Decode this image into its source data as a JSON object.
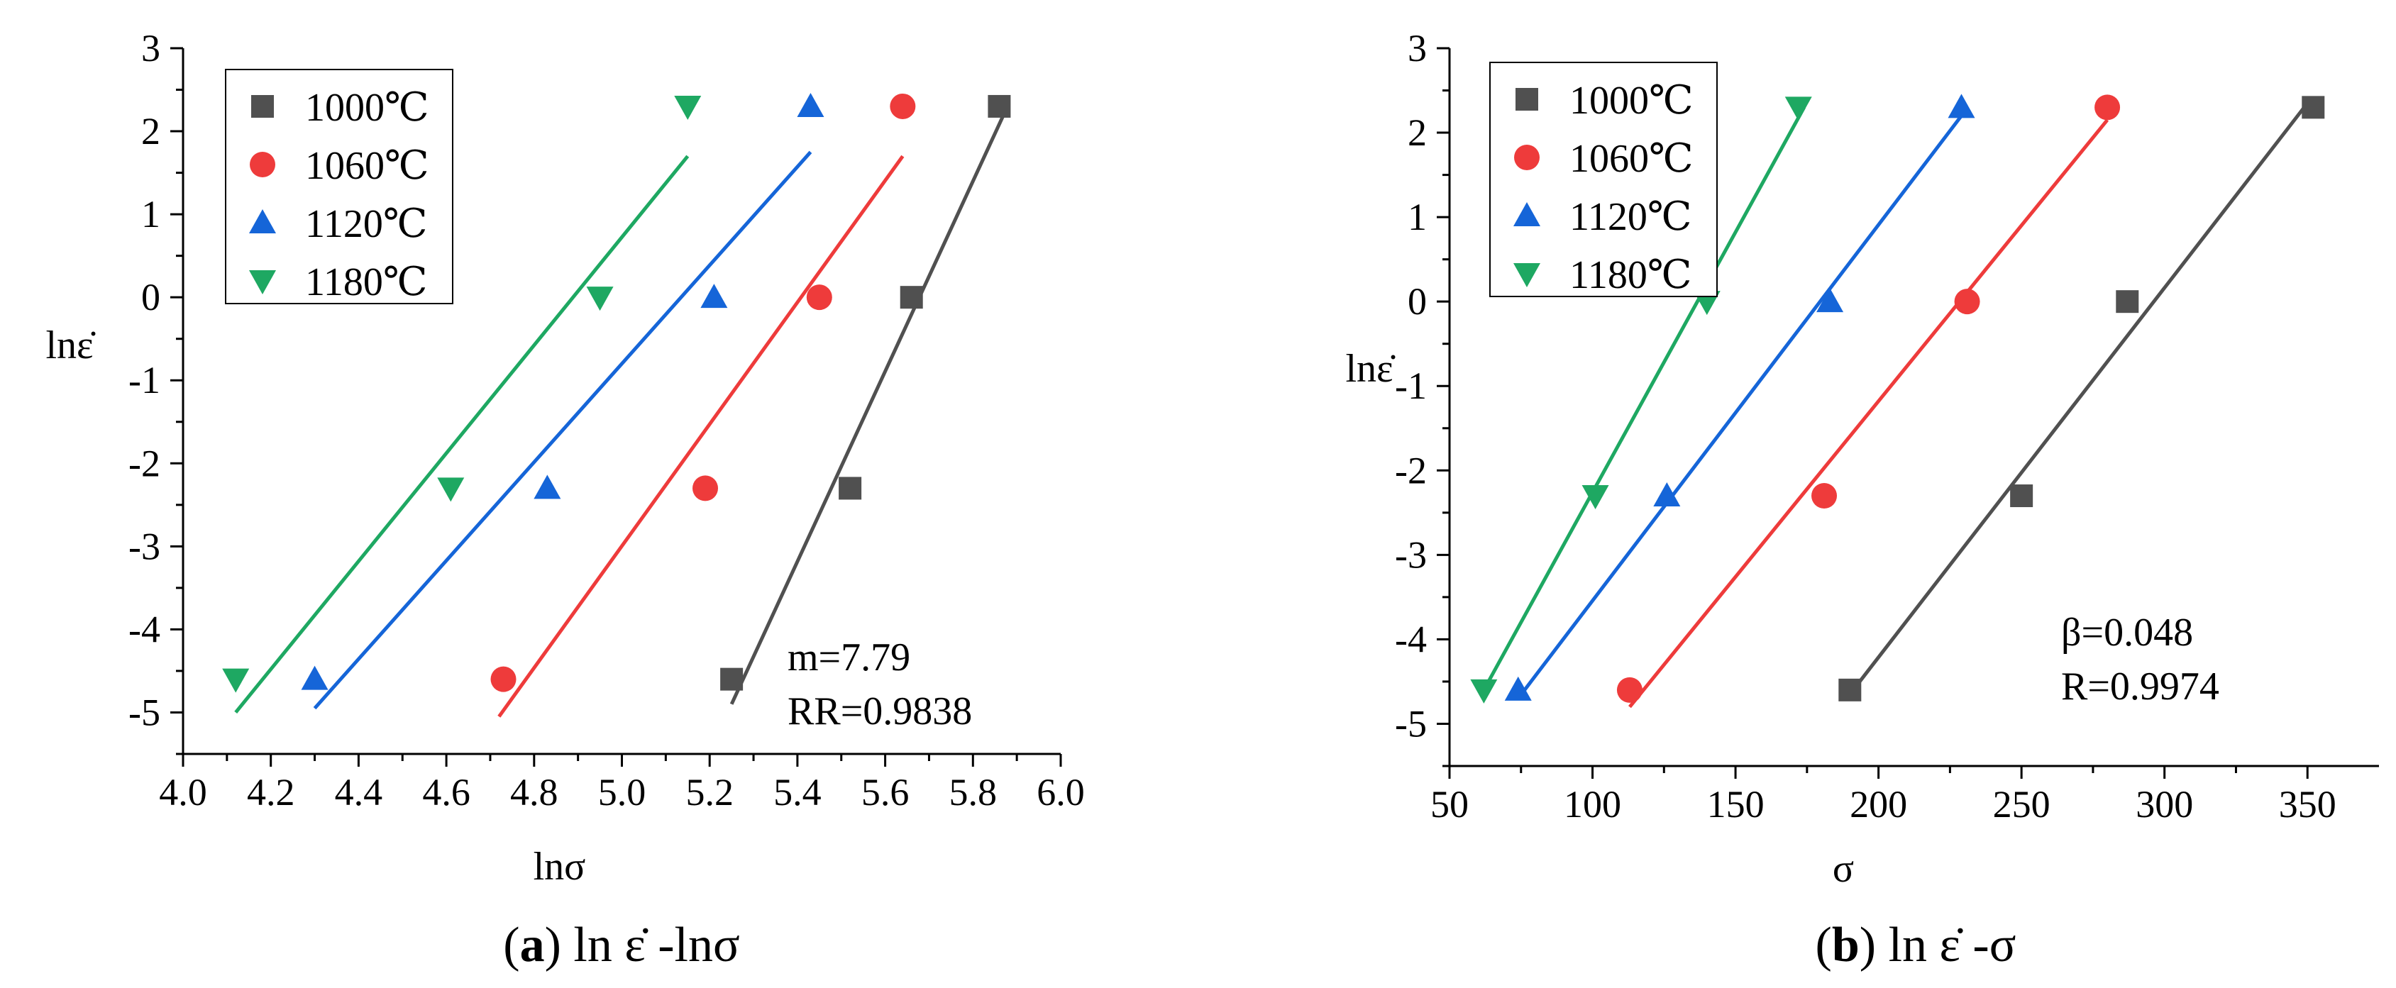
{
  "chart_data": [
    {
      "id": "a",
      "type": "scatter",
      "caption": {
        "paren_open": "(",
        "letter": "a",
        "paren_close": ")",
        "text": " ln ε̇ -lnσ"
      },
      "xlabel": "lnσ",
      "ylabel": "lnε̇",
      "xlim": [
        4.0,
        6.0
      ],
      "ylim": [
        -5.5,
        3
      ],
      "xticks": [
        4.0,
        4.2,
        4.4,
        4.6,
        4.8,
        5.0,
        5.2,
        5.4,
        5.6,
        5.8,
        6.0
      ],
      "xtick_labels": [
        "4.0",
        "4.2",
        "4.4",
        "4.6",
        "4.8",
        "5.0",
        "5.2",
        "5.4",
        "5.6",
        "5.8",
        "6.0"
      ],
      "yticks": [
        -5,
        -4,
        -3,
        -2,
        -1,
        0,
        1,
        2,
        3
      ],
      "ytick_labels": [
        "-5",
        "-4",
        "-3",
        "-2",
        "-1",
        "0",
        "1",
        "2",
        "3"
      ],
      "legend_position": "top-left",
      "annotations": [
        "m=7.79",
        "RR=0.9838"
      ],
      "series": [
        {
          "name": "1000℃",
          "color": "#505050",
          "marker": "square",
          "x": [
            5.25,
            5.52,
            5.66,
            5.86
          ],
          "y": [
            -4.6,
            -2.3,
            0,
            2.3
          ],
          "fit": {
            "x": [
              5.25,
              5.87
            ],
            "y": [
              -4.9,
              2.2
            ]
          }
        },
        {
          "name": "1060℃",
          "color": "#ee3b3b",
          "marker": "circle",
          "x": [
            4.73,
            5.19,
            5.45,
            5.64
          ],
          "y": [
            -4.6,
            -2.3,
            0,
            2.3
          ],
          "fit": {
            "x": [
              4.72,
              5.64
            ],
            "y": [
              -5.05,
              1.7
            ]
          }
        },
        {
          "name": "1120℃",
          "color": "#1565d8",
          "marker": "triangle-up",
          "x": [
            4.3,
            4.83,
            5.21,
            5.43
          ],
          "y": [
            -4.6,
            -2.3,
            0,
            2.3
          ],
          "fit": {
            "x": [
              4.3,
              5.43
            ],
            "y": [
              -4.95,
              1.75
            ]
          }
        },
        {
          "name": "1180℃",
          "color": "#1ea862",
          "marker": "triangle-down",
          "x": [
            4.12,
            4.61,
            4.95,
            5.15
          ],
          "y": [
            -4.6,
            -2.3,
            0,
            2.3
          ],
          "fit": {
            "x": [
              4.12,
              5.15
            ],
            "y": [
              -5.0,
              1.7
            ]
          }
        }
      ]
    },
    {
      "id": "b",
      "type": "scatter",
      "caption": {
        "paren_open": "(",
        "letter": "b",
        "paren_close": ")",
        "text": " ln ε̇ -σ"
      },
      "xlabel": "σ",
      "ylabel": "lnε̇",
      "xlim": [
        50,
        375
      ],
      "ylim": [
        -5.5,
        3
      ],
      "xticks": [
        50,
        100,
        150,
        200,
        250,
        300,
        350
      ],
      "xtick_labels": [
        "50",
        "100",
        "150",
        "200",
        "250",
        "300",
        "350"
      ],
      "yticks": [
        -5,
        -4,
        -3,
        -2,
        -1,
        0,
        1,
        2,
        3
      ],
      "ytick_labels": [
        "-5",
        "-4",
        "-3",
        "-2",
        "-1",
        "0",
        "1",
        "2",
        "3"
      ],
      "legend_position": "top-left",
      "annotations": [
        "β=0.048",
        "R=0.9974"
      ],
      "series": [
        {
          "name": "1000℃",
          "color": "#505050",
          "marker": "square",
          "x": [
            190,
            250,
            287,
            352
          ],
          "y": [
            -4.6,
            -2.3,
            0,
            2.3
          ],
          "fit": {
            "x": [
              190,
              350
            ],
            "y": [
              -4.65,
              2.35
            ]
          }
        },
        {
          "name": "1060℃",
          "color": "#ee3b3b",
          "marker": "circle",
          "x": [
            113,
            181,
            231,
            280
          ],
          "y": [
            -4.6,
            -2.3,
            0,
            2.3
          ],
          "fit": {
            "x": [
              113,
              280
            ],
            "y": [
              -4.8,
              2.15
            ]
          }
        },
        {
          "name": "1120℃",
          "color": "#1565d8",
          "marker": "triangle-up",
          "x": [
            74,
            126,
            183,
            229
          ],
          "y": [
            -4.6,
            -2.3,
            0,
            2.3
          ],
          "fit": {
            "x": [
              74,
              229
            ],
            "y": [
              -4.7,
              2.2
            ]
          }
        },
        {
          "name": "1180℃",
          "color": "#1ea862",
          "marker": "triangle-down",
          "x": [
            62,
            101,
            140,
            172
          ],
          "y": [
            -4.6,
            -2.3,
            0,
            2.3
          ],
          "fit": {
            "x": [
              62,
              174
            ],
            "y": [
              -4.6,
              2.3
            ]
          }
        }
      ]
    }
  ]
}
